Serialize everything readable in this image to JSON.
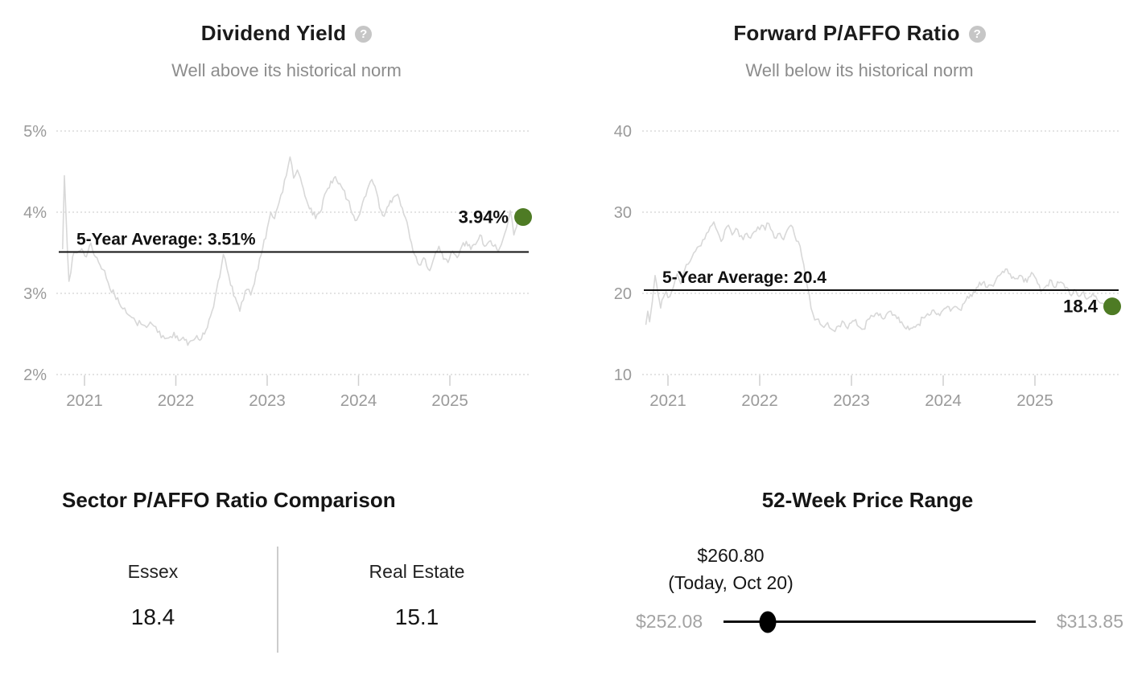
{
  "colors": {
    "accent_green": "#4e7b24",
    "series_gray": "#d8d8d8",
    "grid_gray": "#dadada",
    "tick_gray": "#cfcfcf",
    "axis_label_gray": "#9a9a9a",
    "text_dark": "#141414",
    "muted_gray": "#8c8c8c",
    "range_label_gray": "#a3a3a3"
  },
  "chart_data": [
    {
      "type": "line",
      "title": "Dividend Yield",
      "subtitle": "Well above its historical norm",
      "help_icon": "?",
      "series_name": "Dividend Yield",
      "unit": "%",
      "ylim": [
        2,
        5
      ],
      "xlim": [
        2020.76,
        2025.85
      ],
      "grid": "dotted-horizontal",
      "legend": "none",
      "y_ticks": [
        {
          "label": "5%",
          "value": 5
        },
        {
          "label": "4%",
          "value": 4
        },
        {
          "label": "3%",
          "value": 3
        },
        {
          "label": "2%",
          "value": 2
        }
      ],
      "x_ticks": [
        {
          "label": "2021",
          "year": 2021
        },
        {
          "label": "2022",
          "year": 2022
        },
        {
          "label": "2023",
          "year": 2023
        },
        {
          "label": "2024",
          "year": 2024
        },
        {
          "label": "2025",
          "year": 2025
        }
      ],
      "average_line": {
        "label": "5-Year Average: 3.51%",
        "value": 3.51
      },
      "current_point": {
        "label": "3.94%",
        "value": 3.94,
        "year": 2025.8
      },
      "noise": 0.05,
      "points": [
        [
          2020.76,
          3.55
        ],
        [
          2020.78,
          4.45
        ],
        [
          2020.8,
          3.9
        ],
        [
          2020.83,
          3.15
        ],
        [
          2020.87,
          3.45
        ],
        [
          2020.92,
          3.5
        ],
        [
          2020.97,
          3.55
        ],
        [
          2021.02,
          3.45
        ],
        [
          2021.07,
          3.62
        ],
        [
          2021.12,
          3.45
        ],
        [
          2021.17,
          3.35
        ],
        [
          2021.22,
          3.28
        ],
        [
          2021.28,
          3.05
        ],
        [
          2021.33,
          2.98
        ],
        [
          2021.38,
          2.88
        ],
        [
          2021.44,
          2.82
        ],
        [
          2021.5,
          2.72
        ],
        [
          2021.56,
          2.65
        ],
        [
          2021.62,
          2.62
        ],
        [
          2021.68,
          2.58
        ],
        [
          2021.74,
          2.62
        ],
        [
          2021.8,
          2.52
        ],
        [
          2021.86,
          2.48
        ],
        [
          2021.92,
          2.45
        ],
        [
          2021.98,
          2.52
        ],
        [
          2022.03,
          2.42
        ],
        [
          2022.08,
          2.46
        ],
        [
          2022.13,
          2.36
        ],
        [
          2022.18,
          2.42
        ],
        [
          2022.23,
          2.48
        ],
        [
          2022.28,
          2.44
        ],
        [
          2022.33,
          2.55
        ],
        [
          2022.38,
          2.72
        ],
        [
          2022.43,
          2.95
        ],
        [
          2022.48,
          3.2
        ],
        [
          2022.52,
          3.48
        ],
        [
          2022.56,
          3.3
        ],
        [
          2022.6,
          3.1
        ],
        [
          2022.65,
          2.95
        ],
        [
          2022.7,
          2.78
        ],
        [
          2022.74,
          2.92
        ],
        [
          2022.78,
          3.05
        ],
        [
          2022.82,
          2.98
        ],
        [
          2022.86,
          3.12
        ],
        [
          2022.9,
          3.3
        ],
        [
          2022.95,
          3.55
        ],
        [
          2023.0,
          3.8
        ],
        [
          2023.04,
          4.0
        ],
        [
          2023.08,
          3.92
        ],
        [
          2023.13,
          4.12
        ],
        [
          2023.17,
          4.25
        ],
        [
          2023.21,
          4.45
        ],
        [
          2023.25,
          4.68
        ],
        [
          2023.29,
          4.42
        ],
        [
          2023.33,
          4.52
        ],
        [
          2023.38,
          4.35
        ],
        [
          2023.43,
          4.15
        ],
        [
          2023.48,
          4.05
        ],
        [
          2023.53,
          3.92
        ],
        [
          2023.58,
          4.0
        ],
        [
          2023.63,
          4.22
        ],
        [
          2023.68,
          4.3
        ],
        [
          2023.73,
          4.42
        ],
        [
          2023.78,
          4.35
        ],
        [
          2023.83,
          4.28
        ],
        [
          2023.88,
          4.15
        ],
        [
          2023.93,
          3.98
        ],
        [
          2023.98,
          3.9
        ],
        [
          2024.03,
          4.05
        ],
        [
          2024.08,
          4.2
        ],
        [
          2024.13,
          4.38
        ],
        [
          2024.18,
          4.32
        ],
        [
          2024.23,
          4.05
        ],
        [
          2024.28,
          3.95
        ],
        [
          2024.33,
          4.08
        ],
        [
          2024.38,
          4.18
        ],
        [
          2024.43,
          4.22
        ],
        [
          2024.48,
          4.05
        ],
        [
          2024.53,
          3.88
        ],
        [
          2024.58,
          3.62
        ],
        [
          2024.63,
          3.45
        ],
        [
          2024.68,
          3.35
        ],
        [
          2024.73,
          3.42
        ],
        [
          2024.78,
          3.28
        ],
        [
          2024.83,
          3.45
        ],
        [
          2024.88,
          3.58
        ],
        [
          2024.93,
          3.42
        ],
        [
          2024.98,
          3.38
        ],
        [
          2025.03,
          3.52
        ],
        [
          2025.08,
          3.44
        ],
        [
          2025.13,
          3.58
        ],
        [
          2025.18,
          3.64
        ],
        [
          2025.23,
          3.54
        ],
        [
          2025.28,
          3.6
        ],
        [
          2025.33,
          3.72
        ],
        [
          2025.38,
          3.58
        ],
        [
          2025.43,
          3.64
        ],
        [
          2025.48,
          3.58
        ],
        [
          2025.53,
          3.52
        ],
        [
          2025.58,
          3.66
        ],
        [
          2025.62,
          3.8
        ],
        [
          2025.66,
          4.02
        ],
        [
          2025.7,
          3.72
        ],
        [
          2025.73,
          3.82
        ],
        [
          2025.76,
          3.94
        ]
      ]
    },
    {
      "type": "line",
      "title": "Forward P/AFFO Ratio",
      "subtitle": "Well below its historical norm",
      "help_icon": "?",
      "series_name": "Forward P/AFFO Ratio",
      "unit": "",
      "ylim": [
        10,
        40
      ],
      "xlim": [
        2020.76,
        2025.85
      ],
      "grid": "dotted-horizontal",
      "legend": "none",
      "y_ticks": [
        {
          "label": "40",
          "value": 40
        },
        {
          "label": "30",
          "value": 30
        },
        {
          "label": "20",
          "value": 20
        },
        {
          "label": "10",
          "value": 10
        }
      ],
      "x_ticks": [
        {
          "label": "2021",
          "year": 2021
        },
        {
          "label": "2022",
          "year": 2022
        },
        {
          "label": "2023",
          "year": 2023
        },
        {
          "label": "2024",
          "year": 2024
        },
        {
          "label": "2025",
          "year": 2025
        }
      ],
      "average_line": {
        "label": "5-Year Average: 20.4",
        "value": 20.4
      },
      "current_point": {
        "label": "18.4",
        "value": 18.4,
        "year": 2025.8
      },
      "noise": 0.5,
      "points": [
        [
          2020.76,
          16.2
        ],
        [
          2020.78,
          17.8
        ],
        [
          2020.8,
          16.5
        ],
        [
          2020.83,
          19.0
        ],
        [
          2020.86,
          22.2
        ],
        [
          2020.89,
          20.0
        ],
        [
          2020.92,
          18.2
        ],
        [
          2020.95,
          19.5
        ],
        [
          2020.98,
          20.2
        ],
        [
          2021.02,
          19.6
        ],
        [
          2021.06,
          20.8
        ],
        [
          2021.1,
          22.4
        ],
        [
          2021.14,
          21.2
        ],
        [
          2021.18,
          22.8
        ],
        [
          2021.22,
          23.6
        ],
        [
          2021.26,
          24.4
        ],
        [
          2021.3,
          25.2
        ],
        [
          2021.34,
          25.8
        ],
        [
          2021.38,
          26.6
        ],
        [
          2021.42,
          27.4
        ],
        [
          2021.46,
          28.2
        ],
        [
          2021.5,
          28.8
        ],
        [
          2021.54,
          27.6
        ],
        [
          2021.58,
          26.4
        ],
        [
          2021.62,
          27.8
        ],
        [
          2021.66,
          28.4
        ],
        [
          2021.7,
          27.2
        ],
        [
          2021.74,
          28.0
        ],
        [
          2021.78,
          27.0
        ],
        [
          2021.82,
          26.6
        ],
        [
          2021.86,
          27.4
        ],
        [
          2021.9,
          26.8
        ],
        [
          2021.94,
          27.6
        ],
        [
          2021.98,
          28.2
        ],
        [
          2022.02,
          28.4
        ],
        [
          2022.06,
          27.8
        ],
        [
          2022.1,
          28.6
        ],
        [
          2022.14,
          27.6
        ],
        [
          2022.18,
          26.8
        ],
        [
          2022.22,
          27.4
        ],
        [
          2022.26,
          26.6
        ],
        [
          2022.3,
          27.8
        ],
        [
          2022.34,
          28.4
        ],
        [
          2022.38,
          27.2
        ],
        [
          2022.42,
          26.4
        ],
        [
          2022.46,
          24.5
        ],
        [
          2022.5,
          22.0
        ],
        [
          2022.54,
          19.8
        ],
        [
          2022.58,
          17.5
        ],
        [
          2022.62,
          16.8
        ],
        [
          2022.66,
          16.2
        ],
        [
          2022.7,
          15.8
        ],
        [
          2022.74,
          16.4
        ],
        [
          2022.78,
          15.6
        ],
        [
          2022.82,
          15.3
        ],
        [
          2022.86,
          16.0
        ],
        [
          2022.9,
          16.6
        ],
        [
          2022.94,
          15.9
        ],
        [
          2022.98,
          16.3
        ],
        [
          2023.03,
          16.6
        ],
        [
          2023.08,
          15.9
        ],
        [
          2023.13,
          15.6
        ],
        [
          2023.18,
          16.8
        ],
        [
          2023.23,
          17.2
        ],
        [
          2023.28,
          17.6
        ],
        [
          2023.33,
          17.0
        ],
        [
          2023.38,
          17.4
        ],
        [
          2023.43,
          17.8
        ],
        [
          2023.48,
          17.3
        ],
        [
          2023.53,
          16.4
        ],
        [
          2023.58,
          15.8
        ],
        [
          2023.63,
          15.5
        ],
        [
          2023.68,
          15.9
        ],
        [
          2023.73,
          16.2
        ],
        [
          2023.78,
          17.0
        ],
        [
          2023.83,
          17.5
        ],
        [
          2023.88,
          17.9
        ],
        [
          2023.93,
          17.4
        ],
        [
          2023.98,
          17.7
        ],
        [
          2024.03,
          18.2
        ],
        [
          2024.08,
          17.8
        ],
        [
          2024.13,
          18.4
        ],
        [
          2024.18,
          18.0
        ],
        [
          2024.23,
          18.8
        ],
        [
          2024.28,
          19.4
        ],
        [
          2024.33,
          20.2
        ],
        [
          2024.38,
          20.8
        ],
        [
          2024.43,
          21.3
        ],
        [
          2024.48,
          20.7
        ],
        [
          2024.53,
          21.0
        ],
        [
          2024.58,
          21.8
        ],
        [
          2024.63,
          22.4
        ],
        [
          2024.68,
          23.0
        ],
        [
          2024.73,
          22.4
        ],
        [
          2024.78,
          21.8
        ],
        [
          2024.83,
          22.2
        ],
        [
          2024.88,
          21.4
        ],
        [
          2024.93,
          22.0
        ],
        [
          2024.98,
          22.4
        ],
        [
          2025.03,
          21.2
        ],
        [
          2025.08,
          20.4
        ],
        [
          2025.13,
          21.0
        ],
        [
          2025.18,
          21.6
        ],
        [
          2025.23,
          20.8
        ],
        [
          2025.28,
          21.4
        ],
        [
          2025.33,
          20.6
        ],
        [
          2025.38,
          19.9
        ],
        [
          2025.43,
          20.5
        ],
        [
          2025.48,
          19.6
        ],
        [
          2025.53,
          20.2
        ],
        [
          2025.58,
          19.4
        ],
        [
          2025.63,
          20.0
        ],
        [
          2025.68,
          19.2
        ],
        [
          2025.73,
          18.8
        ],
        [
          2025.78,
          18.4
        ]
      ]
    },
    {
      "type": "table",
      "title": "Sector P/AFFO Ratio Comparison",
      "columns": [
        "Essex",
        "Real Estate"
      ],
      "values": [
        18.4,
        15.1
      ]
    },
    {
      "type": "range",
      "title": "52-Week Price Range",
      "min": 252.08,
      "max": 313.85,
      "current": 260.8,
      "current_label": "(Today, Oct 20)"
    }
  ],
  "comparison": {
    "title": "Sector P/AFFO Ratio Comparison",
    "items": [
      {
        "name": "Essex",
        "value": "18.4"
      },
      {
        "name": "Real Estate",
        "value": "15.1"
      }
    ]
  },
  "price_range": {
    "title": "52-Week Price Range",
    "current_price": "$260.80",
    "current_note": "(Today, Oct 20)",
    "low": "$252.08",
    "high": "$313.85",
    "position_pct": 14.1
  }
}
